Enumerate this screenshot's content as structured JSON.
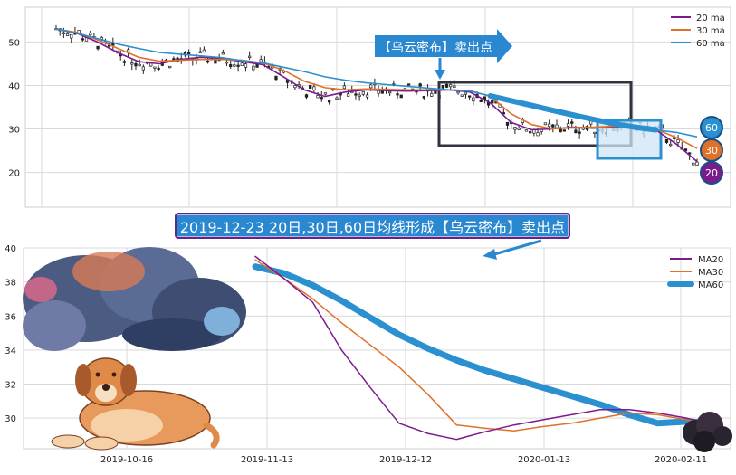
{
  "colors": {
    "ma20": "#7b1b8c",
    "ma30": "#e0702a",
    "ma60": "#2a90d0",
    "grid": "#d9d9d9",
    "candle": "#222222",
    "box_dark": "#333340",
    "box_blue_fill": "#cfe6f5"
  },
  "banner": {
    "text": "2019-12-23 20日,30日,60日均线形成【乌云密布】卖出点"
  },
  "top_annotation": {
    "text": "【乌云密布】卖出点"
  },
  "badges": [
    "60",
    "30",
    "20"
  ],
  "chart_data": [
    {
      "type": "line",
      "panel": "top",
      "y_ticks": [
        20,
        30,
        40,
        50
      ],
      "ylim": [
        12,
        58
      ],
      "legend": {
        "position": "top-right",
        "entries": [
          "20 ma",
          "30 ma",
          "60 ma"
        ]
      },
      "grid": true,
      "series": [
        {
          "name": "20 ma",
          "values": [
            53,
            52,
            50,
            47.5,
            45.5,
            45,
            46,
            46.5,
            46.2,
            45.5,
            44.8,
            42,
            39,
            37.5,
            38.5,
            39,
            38.8,
            38.7,
            38.8,
            39,
            38.5,
            36,
            31.5,
            29.8,
            30,
            30.4,
            30.2,
            30.5,
            30.4,
            29.8,
            26.5,
            22.5
          ]
        },
        {
          "name": "30 ma",
          "values": [
            53,
            52.2,
            50.5,
            48.5,
            46.5,
            45.6,
            45.8,
            46,
            46,
            45.8,
            45.2,
            43.5,
            41,
            39.5,
            39,
            39.2,
            39.1,
            39,
            39,
            39,
            38.8,
            37.5,
            33.5,
            31,
            30,
            30.3,
            30.4,
            30.6,
            30.3,
            30,
            28,
            25.5
          ]
        },
        {
          "name": "60 ma",
          "values": [
            53,
            52,
            50.8,
            49.5,
            48.5,
            47.6,
            47.2,
            46.8,
            46.4,
            45.7,
            45.2,
            44.2,
            43.2,
            42,
            41.2,
            40.6,
            40.2,
            39.8,
            39.4,
            39,
            38.7,
            37.6,
            36.5,
            35.4,
            34.3,
            33.2,
            32.2,
            31.2,
            30.4,
            29.8,
            29.2,
            28.2
          ]
        }
      ]
    },
    {
      "type": "line",
      "panel": "bottom",
      "y_ticks": [
        30,
        32,
        34,
        36,
        38,
        40
      ],
      "ylim": [
        28.2,
        40
      ],
      "x_ticks": [
        "2019-10-16",
        "2019-11-13",
        "2019-12-12",
        "2020-01-13",
        "2020-02-11"
      ],
      "legend": {
        "position": "top-right",
        "entries": [
          "MA20",
          "MA30",
          "MA60"
        ]
      },
      "grid": true,
      "series": [
        {
          "name": "MA20",
          "values": [
            39.5,
            38.2,
            36.8,
            34.0,
            31.8,
            29.7,
            29.1,
            28.75,
            29.2,
            29.6,
            29.9,
            30.2,
            30.5,
            30.5,
            30.3,
            30.0,
            29.6
          ]
        },
        {
          "name": "MA30",
          "values": [
            39.3,
            38.2,
            37.0,
            35.6,
            34.3,
            33.0,
            31.4,
            29.6,
            29.4,
            29.25,
            29.5,
            29.7,
            30.0,
            30.3,
            30.2,
            29.9,
            29.75
          ]
        },
        {
          "name": "MA60",
          "values": [
            38.9,
            38.5,
            37.8,
            36.9,
            35.9,
            34.9,
            34.1,
            33.4,
            32.8,
            32.3,
            31.8,
            31.3,
            30.8,
            30.2,
            29.7,
            29.8,
            29.7
          ]
        }
      ]
    }
  ]
}
